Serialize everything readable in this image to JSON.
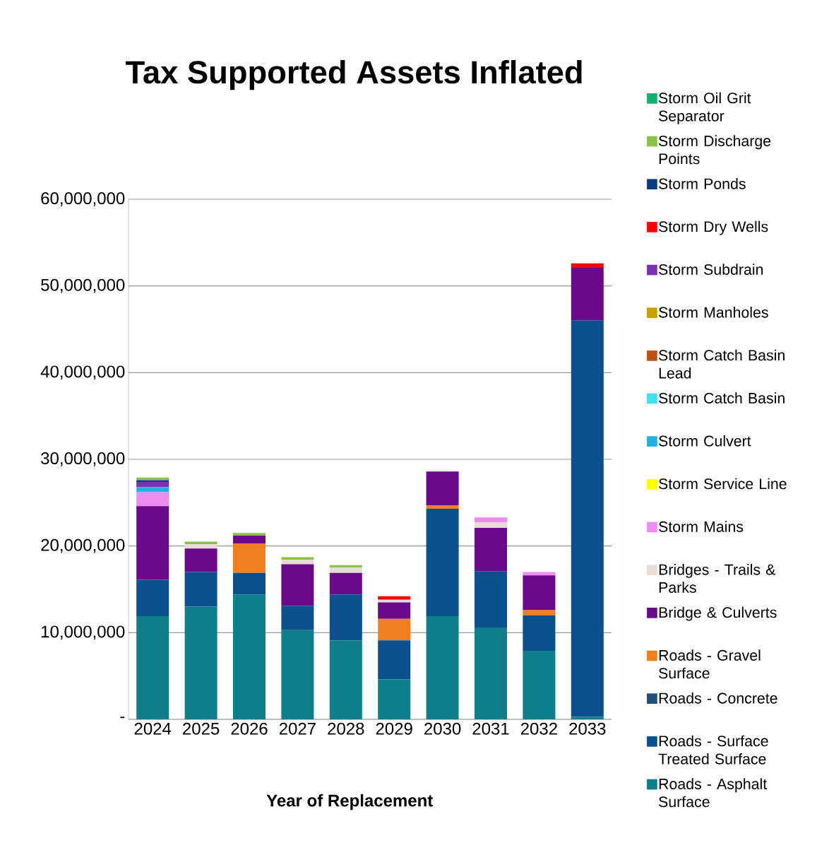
{
  "chart_data": {
    "type": "bar",
    "stacked": true,
    "title": "Tax Supported Assets Inflated",
    "xlabel": "Year of Replacement",
    "categories": [
      "2024",
      "2025",
      "2026",
      "2027",
      "2028",
      "2029",
      "2030",
      "2031",
      "2032",
      "2033"
    ],
    "ylim": [
      0,
      60000000
    ],
    "yticks": [
      {
        "value": 0,
        "label": "-"
      },
      {
        "value": 10000000,
        "label": "10,000,000"
      },
      {
        "value": 20000000,
        "label": "20,000,000"
      },
      {
        "value": 30000000,
        "label": "30,000,000"
      },
      {
        "value": 40000000,
        "label": "40,000,000"
      },
      {
        "value": 50000000,
        "label": "50,000,000"
      },
      {
        "value": 60000000,
        "label": "60,000,000"
      }
    ],
    "grid": "y",
    "legend": "right",
    "series": [
      {
        "name": "Roads - Asphalt Surface",
        "color": "#0e7f8a",
        "values": [
          11900000,
          13000000,
          14400000,
          10300000,
          9100000,
          4600000,
          11900000,
          10600000,
          7900000,
          300000
        ]
      },
      {
        "name": "Roads - Surface Treated Surface",
        "color": "#0b4f8c",
        "values": [
          4200000,
          4000000,
          2500000,
          2800000,
          5300000,
          4500000,
          12400000,
          6500000,
          4100000,
          45700000
        ]
      },
      {
        "name": "Roads - Concrete",
        "color": "#1f4e79",
        "values": [
          null,
          null,
          null,
          null,
          null,
          null,
          null,
          null,
          null,
          null
        ]
      },
      {
        "name": "Roads - Gravel Surface",
        "color": "#f07f22",
        "values": [
          null,
          null,
          3400000,
          null,
          null,
          2500000,
          400000,
          null,
          600000,
          null
        ]
      },
      {
        "name": "Bridge & Culverts",
        "color": "#6a0a8a",
        "values": [
          8500000,
          2700000,
          900000,
          4800000,
          2500000,
          1900000,
          3900000,
          5000000,
          4000000,
          6100000
        ]
      },
      {
        "name": "Bridges - Trails & Parks",
        "color": "#e8ddd5",
        "values": [
          null,
          500000,
          null,
          500000,
          600000,
          300000,
          null,
          600000,
          null,
          null
        ]
      },
      {
        "name": "Storm Mains",
        "color": "#f08cf0",
        "values": [
          1600000,
          null,
          null,
          null,
          null,
          null,
          null,
          600000,
          400000,
          null
        ]
      },
      {
        "name": "Storm Service Line",
        "color": "#ffff00",
        "values": [
          null,
          null,
          null,
          null,
          null,
          null,
          null,
          null,
          null,
          null
        ]
      },
      {
        "name": "Storm Culvert",
        "color": "#1fb2e0",
        "values": [
          600000,
          null,
          null,
          null,
          null,
          null,
          null,
          null,
          null,
          null
        ]
      },
      {
        "name": "Storm Catch Basin",
        "color": "#40e0f0",
        "values": [
          null,
          null,
          null,
          null,
          null,
          null,
          null,
          null,
          null,
          null
        ]
      },
      {
        "name": "Storm Catch Basin Lead",
        "color": "#c05010",
        "values": [
          null,
          null,
          null,
          null,
          null,
          null,
          null,
          null,
          null,
          null
        ]
      },
      {
        "name": "Storm Manholes",
        "color": "#c8a000",
        "values": [
          null,
          null,
          null,
          null,
          null,
          null,
          null,
          null,
          null,
          null
        ]
      },
      {
        "name": "Storm Subdrain",
        "color": "#7a30b0",
        "values": [
          600000,
          null,
          null,
          null,
          null,
          null,
          null,
          null,
          null,
          null
        ]
      },
      {
        "name": "Storm Dry Wells",
        "color": "#ff0000",
        "values": [
          null,
          null,
          null,
          null,
          null,
          400000,
          null,
          null,
          null,
          500000
        ]
      },
      {
        "name": "Storm Ponds",
        "color": "#0a3c80",
        "values": [
          200000,
          null,
          null,
          null,
          null,
          null,
          null,
          null,
          null,
          null
        ]
      },
      {
        "name": "Storm Discharge Points",
        "color": "#8bc34a",
        "values": [
          300000,
          300000,
          300000,
          300000,
          300000,
          null,
          null,
          null,
          null,
          null
        ]
      },
      {
        "name": "Storm Oil Grit Separator",
        "color": "#10b070",
        "values": [
          null,
          null,
          null,
          null,
          null,
          null,
          null,
          null,
          null,
          null
        ]
      }
    ]
  }
}
